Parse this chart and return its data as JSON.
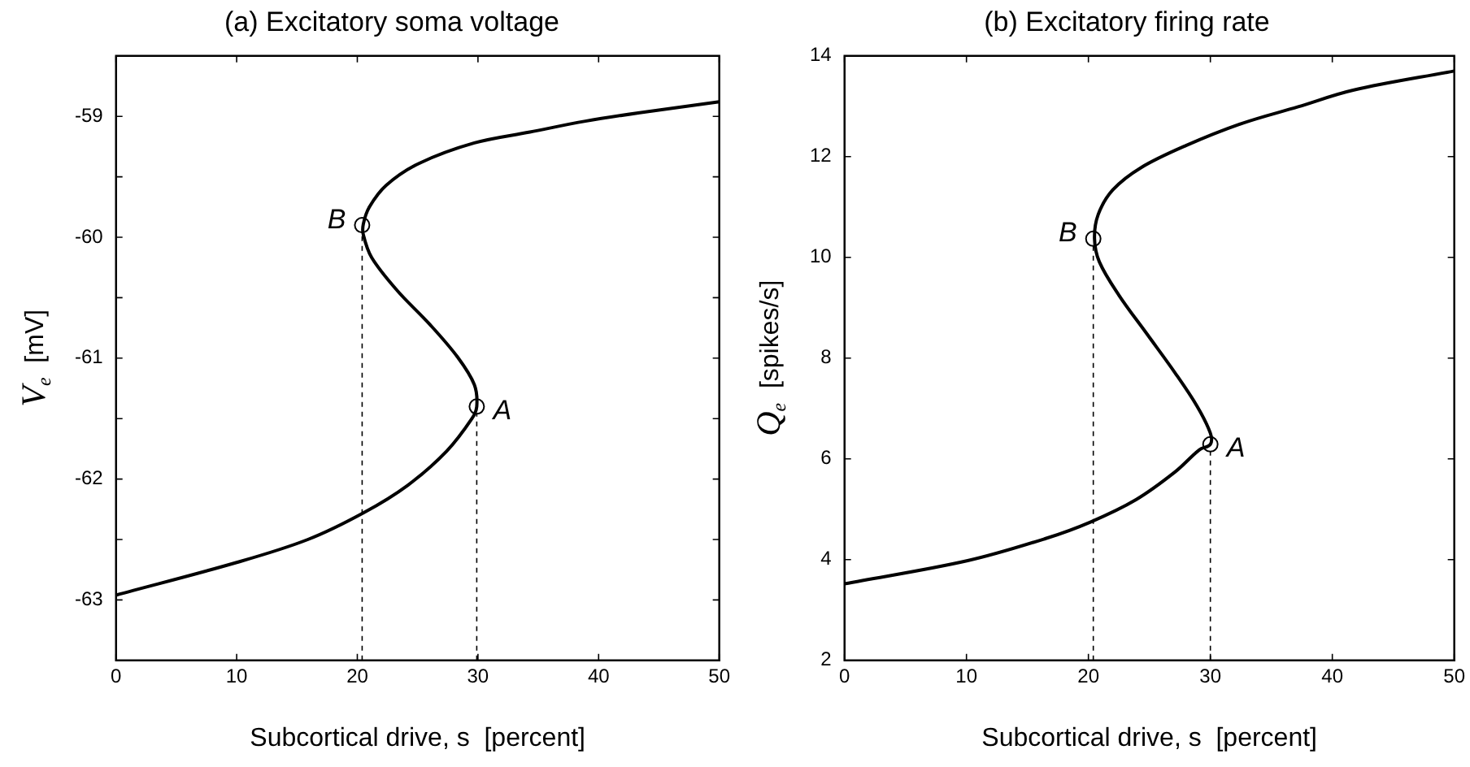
{
  "chart_data": [
    {
      "type": "line",
      "title": "(a) Excitatory soma voltage",
      "xlabel": "Subcortical drive, s  [percent]",
      "ylabel": "V$_{e}$  [mV]",
      "xlim": [
        0,
        50
      ],
      "xticks": [
        0,
        10,
        20,
        30,
        40,
        50
      ],
      "ylim": [
        -63.5,
        -58.5
      ],
      "yticks": [
        -63,
        {
          "value": -62.5,
          "label": null
        },
        -62,
        {
          "value": -61.5,
          "label": null
        },
        -61,
        {
          "value": -60.5,
          "label": null
        },
        -60,
        {
          "value": -59.5,
          "label": null
        },
        -59
      ],
      "legend": false,
      "series": [
        {
          "type": "line",
          "color": "#000000",
          "marker": "none",
          "x": [
            0,
            10,
            15.9,
            20.5,
            24.2,
            27.4,
            29.5,
            29.9,
            29.7,
            28.3,
            26.0,
            23.3,
            21.2,
            20.5,
            20.5,
            21.0,
            22.4,
            25.1,
            29.7,
            34.3,
            38.9,
            43.4,
            50
          ],
          "values": [
            -62.96,
            -62.69,
            -62.5,
            -62.28,
            -62.05,
            -61.77,
            -61.5,
            -61.4,
            -61.22,
            -60.99,
            -60.72,
            -60.44,
            -60.17,
            -59.98,
            -59.89,
            -59.75,
            -59.57,
            -59.39,
            -59.22,
            -59.13,
            -59.04,
            -58.97,
            -58.88
          ]
        },
        {
          "type": "scatter",
          "color": "#000000",
          "marker": "circle",
          "x": [
            29.9,
            20.4
          ],
          "values": [
            -61.4,
            -59.9
          ]
        }
      ],
      "ref_lines": [
        {
          "axis": "x",
          "value": 20.4,
          "line_style": "dashed"
        },
        {
          "axis": "x",
          "value": 29.9,
          "line_style": "dashed"
        }
      ],
      "annotations": [
        {
          "text": "A",
          "x": 29.9,
          "y": -61.4
        },
        {
          "text": "B",
          "x": 20.4,
          "y": -59.9
        }
      ]
    },
    {
      "type": "line",
      "title": "(b) Excitatory firing rate",
      "xlabel": "Subcortical drive, s  [percent]",
      "ylabel": "Q$_{e}$  [spikes/s]",
      "xlim": [
        0,
        50
      ],
      "xticks": [
        0,
        10,
        20,
        30,
        40,
        50
      ],
      "ylim": [
        2,
        14
      ],
      "yticks": [
        2,
        4,
        6,
        8,
        10,
        12,
        14
      ],
      "legend": false,
      "series": [
        {
          "type": "line",
          "color": "#000000",
          "marker": "none",
          "x": [
            0,
            10.1,
            16.5,
            20.2,
            23.9,
            27.1,
            29.1,
            30.0,
            30.0,
            28.9,
            27.1,
            24.8,
            22.5,
            20.9,
            20.5,
            20.8,
            22.0,
            24.3,
            28.0,
            32.6,
            37.2,
            41.7,
            50
          ],
          "values": [
            3.52,
            3.98,
            4.42,
            4.75,
            5.19,
            5.74,
            6.18,
            6.29,
            6.51,
            7.05,
            7.71,
            8.48,
            9.25,
            9.91,
            10.37,
            10.85,
            11.34,
            11.78,
            12.22,
            12.66,
            12.99,
            13.32,
            13.7
          ]
        },
        {
          "type": "scatter",
          "color": "#000000",
          "marker": "circle",
          "x": [
            30.0,
            20.4
          ],
          "values": [
            6.29,
            10.37
          ]
        }
      ],
      "ref_lines": [
        {
          "axis": "x",
          "value": 20.4,
          "line_style": "dashed"
        },
        {
          "axis": "x",
          "value": 30.0,
          "line_style": "dashed"
        }
      ],
      "annotations": [
        {
          "text": "A",
          "x": 30.0,
          "y": 6.29
        },
        {
          "text": "B",
          "x": 20.4,
          "y": 10.37
        }
      ]
    }
  ]
}
